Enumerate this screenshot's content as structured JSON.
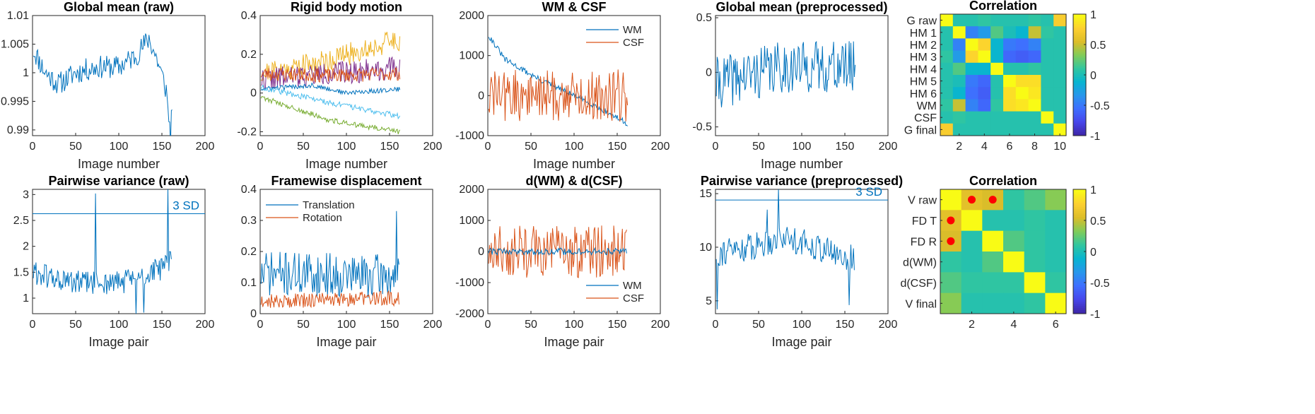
{
  "figure": {
    "colors": {
      "blue": "#0072BD",
      "orange": "#D95319",
      "yellow": "#EDB120",
      "purple": "#7E2F8E",
      "green": "#77AC30",
      "lightblue": "#4DBEEE"
    },
    "colormap": "parula"
  },
  "chart_data": [
    {
      "id": "p1",
      "type": "line",
      "title": "Global mean (raw)",
      "xlabel": "Image number",
      "xlim": [
        0,
        200
      ],
      "ylim": [
        0.989,
        1.01
      ],
      "xticks": [
        0,
        50,
        100,
        150,
        200
      ],
      "xtick_labels": [
        "0",
        "50",
        "100",
        "150",
        "200"
      ],
      "yticks": [
        0.99,
        0.995,
        1,
        1.005,
        1.01
      ],
      "ytick_labels": [
        "0.99",
        "0.995",
        "1",
        "1.005",
        "1.01"
      ],
      "series": [
        {
          "color": "#0072BD",
          "n": 162,
          "anchors": [
            [
              1,
              1.004
            ],
            [
              15,
              1.0
            ],
            [
              30,
              0.998
            ],
            [
              50,
              1.0
            ],
            [
              75,
              1.001
            ],
            [
              100,
              1.001
            ],
            [
              120,
              1.003
            ],
            [
              135,
              1.006
            ],
            [
              145,
              1.002
            ],
            [
              155,
              0.997
            ],
            [
              160,
              0.989
            ],
            [
              162,
              0.995
            ]
          ],
          "noise": 0.0017,
          "seed": 11
        }
      ]
    },
    {
      "id": "p2",
      "type": "line",
      "title": "Rigid body motion",
      "xlabel": "Image number",
      "xlim": [
        0,
        200
      ],
      "ylim": [
        -0.22,
        0.4
      ],
      "xticks": [
        0,
        50,
        100,
        150,
        200
      ],
      "xtick_labels": [
        "0",
        "50",
        "100",
        "150",
        "200"
      ],
      "yticks": [
        -0.2,
        0,
        0.2,
        0.4
      ],
      "ytick_labels": [
        "-0.2",
        "0",
        "0.2",
        "0.4"
      ],
      "series": [
        {
          "color": "#EDB120",
          "n": 162,
          "anchors": [
            [
              1,
              0.1
            ],
            [
              80,
              0.17
            ],
            [
              162,
              0.28
            ]
          ],
          "noise": 0.05,
          "seed": 21
        },
        {
          "color": "#7E2F8E",
          "n": 162,
          "anchors": [
            [
              1,
              0.07
            ],
            [
              80,
              0.1
            ],
            [
              162,
              0.13
            ]
          ],
          "noise": 0.05,
          "seed": 22
        },
        {
          "color": "#D95319",
          "n": 162,
          "anchors": [
            [
              1,
              0.1
            ],
            [
              80,
              0.09
            ],
            [
              162,
              0.1
            ]
          ],
          "noise": 0.03,
          "seed": 23
        },
        {
          "color": "#0072BD",
          "n": 162,
          "anchors": [
            [
              1,
              0.02
            ],
            [
              60,
              0.04
            ],
            [
              100,
              0.0
            ],
            [
              162,
              0.02
            ]
          ],
          "noise": 0.01,
          "seed": 24
        },
        {
          "color": "#4DBEEE",
          "n": 162,
          "anchors": [
            [
              1,
              0.03
            ],
            [
              80,
              -0.05
            ],
            [
              162,
              -0.12
            ]
          ],
          "noise": 0.012,
          "seed": 25
        },
        {
          "color": "#77AC30",
          "n": 162,
          "anchors": [
            [
              1,
              -0.02
            ],
            [
              80,
              -0.14
            ],
            [
              162,
              -0.2
            ]
          ],
          "noise": 0.012,
          "seed": 26
        }
      ]
    },
    {
      "id": "p3",
      "type": "line",
      "title": "WM & CSF",
      "xlabel": "Image number",
      "xlim": [
        0,
        200
      ],
      "ylim": [
        -1000,
        2000
      ],
      "xticks": [
        0,
        50,
        100,
        150,
        200
      ],
      "xtick_labels": [
        "0",
        "50",
        "100",
        "150",
        "200"
      ],
      "yticks": [
        -1000,
        0,
        1000,
        2000
      ],
      "ytick_labels": [
        "-1000",
        "0",
        "1000",
        "2000"
      ],
      "legend": {
        "position": "top-right",
        "entries": [
          "WM",
          "CSF"
        ]
      },
      "series": [
        {
          "name": "WM",
          "color": "#0072BD",
          "n": 162,
          "anchors": [
            [
              1,
              1500
            ],
            [
              20,
              900
            ],
            [
              60,
              400
            ],
            [
              120,
              -200
            ],
            [
              162,
              -700
            ]
          ],
          "noise": 60,
          "seed": 31
        },
        {
          "name": "CSF",
          "color": "#D95319",
          "n": 162,
          "anchors": [
            [
              1,
              0
            ],
            [
              30,
              0
            ],
            [
              80,
              0
            ],
            [
              162,
              0
            ]
          ],
          "noise": 550,
          "seed": 32
        }
      ]
    },
    {
      "id": "p4",
      "type": "line",
      "title": "Global mean (preprocessed)",
      "xlabel": "Image number",
      "xlim": [
        0,
        200
      ],
      "ylim": [
        -0.58,
        0.52
      ],
      "xticks": [
        0,
        50,
        100,
        150,
        200
      ],
      "xtick_labels": [
        "0",
        "50",
        "100",
        "150",
        "200"
      ],
      "yticks": [
        -0.5,
        0,
        0.5
      ],
      "ytick_labels": [
        "-0.5",
        "0",
        "0.5"
      ],
      "series": [
        {
          "color": "#0072BD",
          "n": 162,
          "anchors": [
            [
              1,
              -0.1
            ],
            [
              80,
              0.05
            ],
            [
              162,
              0.05
            ]
          ],
          "noise": 0.2,
          "seed": 41
        }
      ]
    },
    {
      "id": "p6",
      "type": "line",
      "title": "Pairwise variance (raw)",
      "xlabel": "Image pair",
      "xlim": [
        0,
        200
      ],
      "ylim": [
        0.7,
        3.1
      ],
      "xticks": [
        0,
        50,
        100,
        150,
        200
      ],
      "xtick_labels": [
        "0",
        "50",
        "100",
        "150",
        "200"
      ],
      "yticks": [
        1,
        1.5,
        2,
        2.5,
        3
      ],
      "ytick_labels": [
        "1",
        "1.5",
        "2",
        "2.5",
        "3"
      ],
      "hline": {
        "y": 2.63,
        "label": "3 SD"
      },
      "series": [
        {
          "color": "#0072BD",
          "n": 161,
          "anchors": [
            [
              1,
              1.5
            ],
            [
              40,
              1.3
            ],
            [
              100,
              1.3
            ],
            [
              140,
              1.5
            ],
            [
              161,
              1.7
            ]
          ],
          "noise": 0.2,
          "seed": 61,
          "spikes": [
            [
              73,
              3.02
            ],
            [
              157,
              3.1
            ],
            [
              120,
              0.7
            ],
            [
              129,
              0.72
            ]
          ]
        }
      ]
    },
    {
      "id": "p7",
      "type": "line",
      "title": "Framewise displacement",
      "xlabel": "Image pair",
      "xlim": [
        0,
        200
      ],
      "ylim": [
        0,
        0.4
      ],
      "xticks": [
        0,
        50,
        100,
        150,
        200
      ],
      "xtick_labels": [
        "0",
        "50",
        "100",
        "150",
        "200"
      ],
      "yticks": [
        0,
        0.1,
        0.2,
        0.3,
        0.4
      ],
      "ytick_labels": [
        "0",
        "0.1",
        "0.2",
        "0.3",
        "0.4"
      ],
      "legend": {
        "position": "top-left",
        "entries": [
          "Translation",
          "Rotation"
        ]
      },
      "series": [
        {
          "name": "Translation",
          "color": "#0072BD",
          "n": 161,
          "anchors": [
            [
              1,
              0.13
            ],
            [
              161,
              0.12
            ]
          ],
          "noise": 0.06,
          "seed": 71,
          "spikes": [
            [
              158,
              0.33
            ]
          ]
        },
        {
          "name": "Rotation",
          "color": "#D95319",
          "n": 161,
          "anchors": [
            [
              1,
              0.04
            ],
            [
              161,
              0.05
            ]
          ],
          "noise": 0.02,
          "seed": 72
        }
      ]
    },
    {
      "id": "p8",
      "type": "line",
      "title": "d(WM) & d(CSF)",
      "xlabel": "Image pair",
      "xlim": [
        0,
        200
      ],
      "ylim": [
        -2000,
        2000
      ],
      "xticks": [
        0,
        50,
        100,
        150,
        200
      ],
      "xtick_labels": [
        "0",
        "50",
        "100",
        "150",
        "200"
      ],
      "yticks": [
        -2000,
        -1000,
        0,
        1000,
        2000
      ],
      "ytick_labels": [
        "-2000",
        "-1000",
        "0",
        "1000",
        "2000"
      ],
      "legend": {
        "position": "bottom-right",
        "entries": [
          "WM",
          "CSF"
        ]
      },
      "series": [
        {
          "name": "CSF",
          "color": "#D95319",
          "n": 161,
          "anchors": [
            [
              1,
              0
            ],
            [
              161,
              0
            ]
          ],
          "noise": 700,
          "seed": 81
        },
        {
          "name": "WM",
          "color": "#0072BD",
          "n": 161,
          "anchors": [
            [
              1,
              0
            ],
            [
              161,
              0
            ]
          ],
          "noise": 90,
          "seed": 82
        }
      ]
    },
    {
      "id": "p9",
      "type": "line",
      "title": "Pairwise variance (preprocessed)",
      "xlabel": "Image pair",
      "xlim": [
        0,
        200
      ],
      "ylim": [
        3.8,
        15.4
      ],
      "xticks": [
        0,
        50,
        100,
        150,
        200
      ],
      "xtick_labels": [
        "0",
        "50",
        "100",
        "150",
        "200"
      ],
      "yticks": [
        5,
        10,
        15
      ],
      "ytick_labels": [
        "5",
        "10",
        "15"
      ],
      "hline": {
        "y": 14.4,
        "label": "3 SD"
      },
      "series": [
        {
          "color": "#0072BD",
          "n": 161,
          "anchors": [
            [
              1,
              9.5
            ],
            [
              40,
              10
            ],
            [
              80,
              11
            ],
            [
              120,
              10
            ],
            [
              150,
              9
            ],
            [
              161,
              9
            ]
          ],
          "noise": 1.1,
          "seed": 91,
          "spikes": [
            [
              2,
              4.2
            ],
            [
              73,
              15.4
            ],
            [
              60,
              13.5
            ],
            [
              155,
              4.6
            ]
          ]
        }
      ]
    },
    {
      "id": "p5",
      "type": "heatmap",
      "title": "Correlation",
      "ylabels": [
        "G raw",
        "HM 1",
        "HM 2",
        "HM 3",
        "HM 4",
        "HM 5",
        "HM 6",
        "WM",
        "CSF",
        "G final"
      ],
      "xticks": [
        2,
        4,
        6,
        8,
        10
      ],
      "xtick_labels": [
        "2",
        "4",
        "6",
        "8",
        "10"
      ],
      "clim": [
        -1,
        1
      ],
      "colorbar_ticks": [
        -1,
        -0.5,
        0,
        0.5,
        1
      ],
      "colorbar_labels": [
        "-1",
        "-0.5",
        "0",
        "0.5",
        "1"
      ],
      "matrix": [
        [
          1,
          0.05,
          0.05,
          0.1,
          0.05,
          0.05,
          0.05,
          0.1,
          0.05,
          0.75
        ],
        [
          0.05,
          1,
          -0.45,
          -0.3,
          0.2,
          0.0,
          -0.1,
          0.5,
          0.1,
          0.05
        ],
        [
          0.05,
          -0.45,
          1,
          0.8,
          -0.1,
          -0.5,
          -0.55,
          -0.45,
          0.05,
          0.05
        ],
        [
          0.1,
          -0.3,
          0.8,
          1,
          -0.1,
          -0.6,
          -0.65,
          -0.6,
          0.05,
          0.05
        ],
        [
          0.05,
          0.2,
          -0.1,
          -0.1,
          1,
          0.05,
          0.05,
          0.1,
          0.05,
          0.05
        ],
        [
          0.05,
          0.0,
          -0.5,
          -0.6,
          0.05,
          1,
          0.85,
          0.85,
          0.05,
          0.05
        ],
        [
          0.05,
          -0.1,
          -0.55,
          -0.65,
          0.05,
          0.85,
          1,
          0.9,
          0.05,
          0.05
        ],
        [
          0.1,
          0.5,
          -0.45,
          -0.6,
          0.1,
          0.85,
          0.9,
          1,
          0.05,
          0.05
        ],
        [
          0.05,
          0.1,
          0.05,
          0.05,
          0.05,
          0.05,
          0.05,
          0.05,
          1,
          0.05
        ],
        [
          0.75,
          0.05,
          0.05,
          0.05,
          0.05,
          0.05,
          0.05,
          0.05,
          0.05,
          1
        ]
      ]
    },
    {
      "id": "p10",
      "type": "heatmap",
      "title": "Correlation",
      "ylabels": [
        "V raw",
        "FD T",
        "FD R",
        "d(WM)",
        "d(CSF)",
        "V final"
      ],
      "xticks": [
        2,
        4,
        6
      ],
      "xtick_labels": [
        "2",
        "4",
        "6"
      ],
      "clim": [
        -1,
        1
      ],
      "colorbar_ticks": [
        -1,
        -0.5,
        0,
        0.5,
        1
      ],
      "colorbar_labels": [
        "-1",
        "-0.5",
        "0",
        "0.5",
        "1"
      ],
      "matrix": [
        [
          1,
          0.6,
          0.55,
          0.1,
          0.2,
          0.35
        ],
        [
          0.6,
          1,
          0.05,
          0.05,
          0.1,
          0.05
        ],
        [
          0.55,
          0.05,
          1,
          0.2,
          0.1,
          0.05
        ],
        [
          0.1,
          0.05,
          0.2,
          1,
          0.1,
          0.05
        ],
        [
          0.2,
          0.1,
          0.1,
          0.1,
          1,
          0.1
        ],
        [
          0.35,
          0.05,
          0.05,
          0.05,
          0.1,
          1
        ]
      ],
      "markers": [
        [
          0,
          1
        ],
        [
          0,
          2
        ],
        [
          1,
          0
        ],
        [
          2,
          0
        ]
      ],
      "marker_color": "#FF0000"
    }
  ]
}
